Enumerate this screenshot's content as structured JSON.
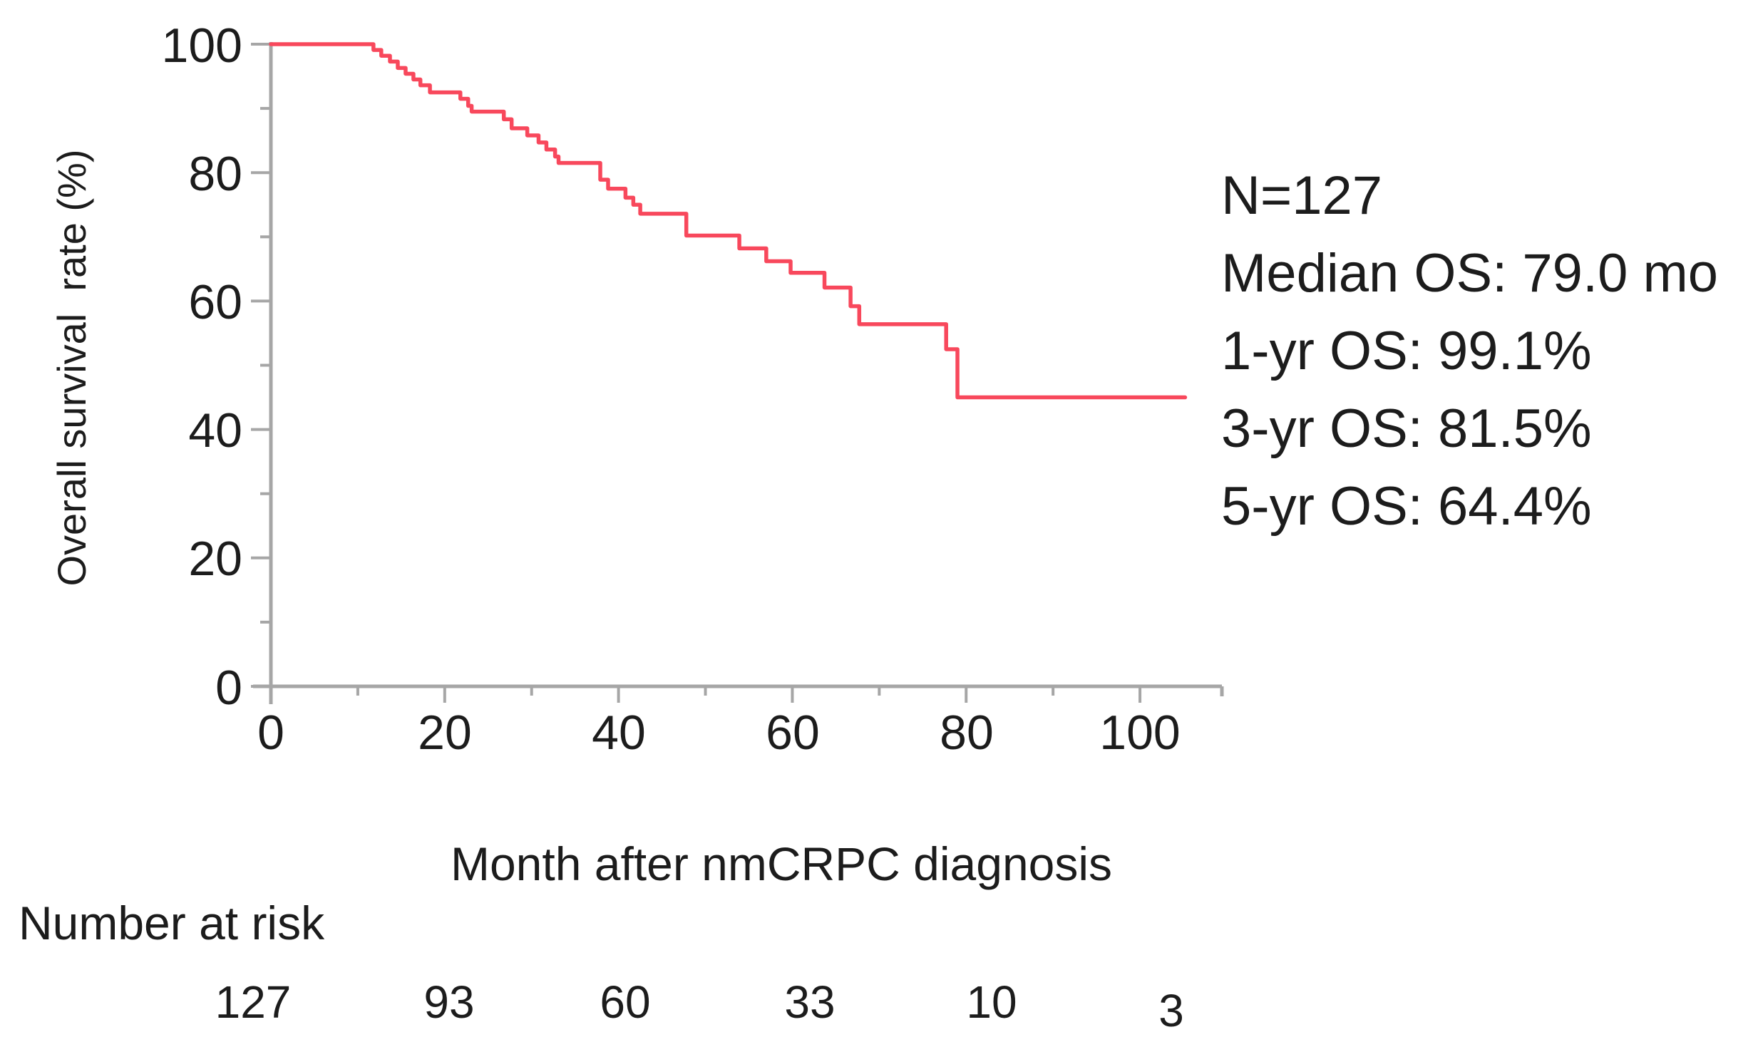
{
  "figure": {
    "background": "#ffffff",
    "text_color": "#1c1c1c"
  },
  "chart_data": {
    "type": "line",
    "subtype": "kaplan-meier-step-curve",
    "title": "",
    "xlabel": "Month after nmCRPC diagnosis",
    "ylabel": "Overall survival  rate (%)",
    "xlim": [
      0,
      110
    ],
    "ylim": [
      0,
      100
    ],
    "grid": false,
    "legend_position": "none",
    "axis_color": "#a6a6a6",
    "x_ticks_major": [
      0,
      20,
      40,
      60,
      80,
      100
    ],
    "x_ticks_minor": [
      10,
      30,
      50,
      70,
      90
    ],
    "y_ticks_major": [
      0,
      20,
      40,
      60,
      80,
      100
    ],
    "y_ticks_minor": [
      10,
      30,
      50,
      70,
      90
    ],
    "x_tick_labels": [
      "0",
      "20",
      "40",
      "60",
      "80",
      "100"
    ],
    "y_tick_labels": [
      "100",
      "80",
      "60",
      "40",
      "20",
      "0"
    ],
    "series": [
      {
        "name": "Overall survival",
        "color": "#f8485c",
        "step": true,
        "end_time": 105.2,
        "points": [
          [
            0,
            100
          ],
          [
            11.8,
            99.1
          ],
          [
            12.7,
            98.2
          ],
          [
            13.7,
            97.3
          ],
          [
            14.6,
            96.3
          ],
          [
            15.5,
            95.4
          ],
          [
            16.4,
            94.5
          ],
          [
            17.2,
            93.6
          ],
          [
            18.3,
            92.5
          ],
          [
            21.8,
            91.5
          ],
          [
            22.7,
            90.4
          ],
          [
            23.1,
            89.5
          ],
          [
            26.8,
            88.3
          ],
          [
            27.7,
            86.9
          ],
          [
            29.5,
            85.8
          ],
          [
            30.8,
            84.7
          ],
          [
            31.7,
            83.6
          ],
          [
            32.7,
            82.5
          ],
          [
            33.1,
            81.5
          ],
          [
            37.9,
            78.9
          ],
          [
            38.8,
            77.5
          ],
          [
            40.8,
            76.1
          ],
          [
            41.7,
            75.0
          ],
          [
            42.5,
            73.6
          ],
          [
            47.8,
            70.2
          ],
          [
            53.9,
            68.2
          ],
          [
            57.0,
            66.2
          ],
          [
            59.8,
            64.4
          ],
          [
            63.7,
            62.1
          ],
          [
            66.7,
            59.2
          ],
          [
            67.7,
            56.4
          ],
          [
            77.7,
            52.5
          ],
          [
            79.0,
            45.0
          ]
        ]
      }
    ],
    "annotations": [
      "N=127",
      "Median OS: 79.0 mo",
      "1-yr OS: 99.1%",
      "3-yr OS: 81.5%",
      "5-yr OS: 64.4%"
    ],
    "number_at_risk": {
      "label": "Number at risk",
      "times": [
        0,
        20,
        40,
        60,
        80,
        100
      ],
      "values": [
        "127",
        "93",
        "60",
        "33",
        "10",
        "3"
      ]
    }
  }
}
